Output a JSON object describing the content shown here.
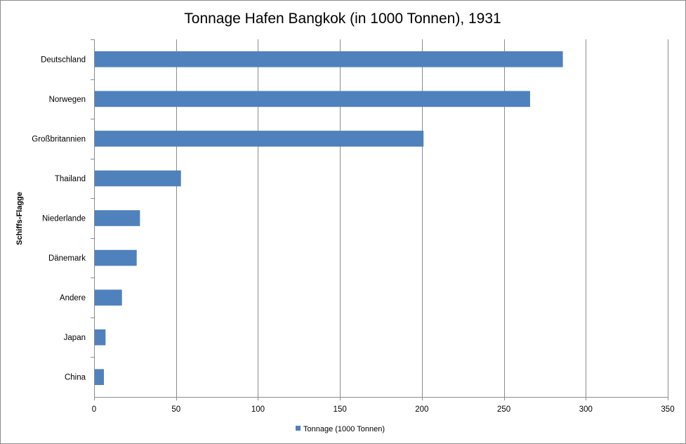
{
  "chart_data": {
    "type": "bar",
    "orientation": "horizontal",
    "title": "Tonnage Hafen Bangkok (in 1000 Tonnen), 1931",
    "xlabel": "",
    "ylabel": "Schiffs-Flagge",
    "categories": [
      "Deutschland",
      "Norwegen",
      "Großbritannien",
      "Thailand",
      "Niederlande",
      "Dänemark",
      "Andere",
      "Japan",
      "China"
    ],
    "series": [
      {
        "name": "Tonnage (1000 Tonnen)",
        "values": [
          286,
          266,
          201,
          53,
          28,
          26,
          17,
          7,
          6
        ]
      }
    ],
    "xlim": [
      0,
      350
    ],
    "xticks": [
      0,
      50,
      100,
      150,
      200,
      250,
      300,
      350
    ],
    "grid": "vertical",
    "legend_position": "bottom",
    "colors": {
      "bar": "#4f81bd",
      "grid": "#8c8c8c",
      "axis": "#8c8c8c"
    }
  }
}
